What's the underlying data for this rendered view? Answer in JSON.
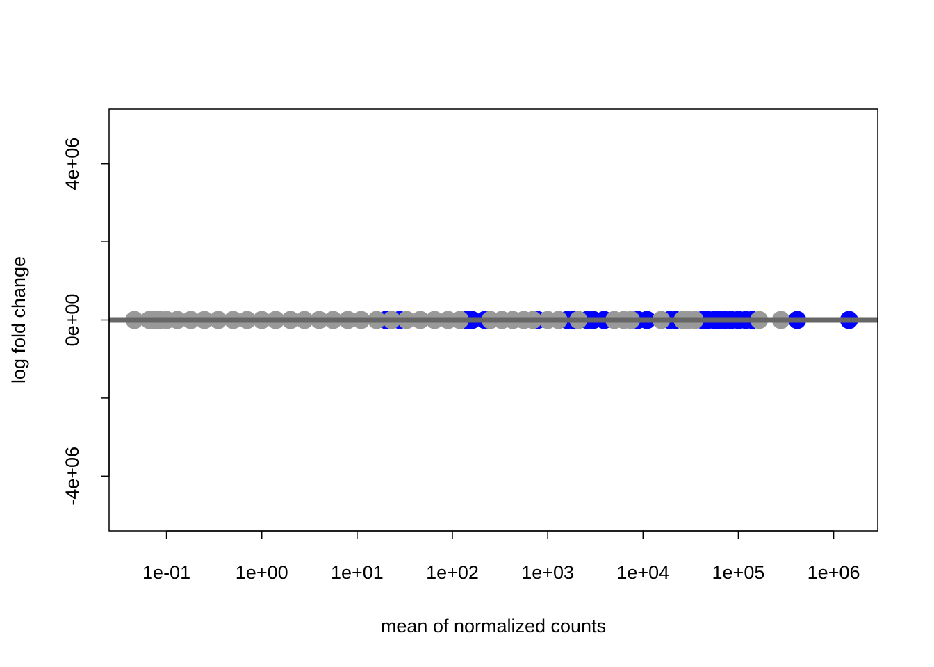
{
  "chart_data": {
    "type": "scatter",
    "title": "",
    "xlabel": "mean of normalized counts",
    "ylabel": "log fold change",
    "x_scale": "log10",
    "xlim": [
      0.025,
      2900000
    ],
    "ylim": [
      -5400000,
      5400000
    ],
    "x_ticks": [
      {
        "value": 0.1,
        "label": "1e-01"
      },
      {
        "value": 1,
        "label": "1e+00"
      },
      {
        "value": 10,
        "label": "1e+01"
      },
      {
        "value": 100,
        "label": "1e+02"
      },
      {
        "value": 1000,
        "label": "1e+03"
      },
      {
        "value": 10000,
        "label": "1e+04"
      },
      {
        "value": 100000,
        "label": "1e+05"
      },
      {
        "value": 1000000,
        "label": "1e+06"
      }
    ],
    "y_ticks": [
      {
        "value": -4000000,
        "label": "-4e+06"
      },
      {
        "value": -2000000,
        "label": ""
      },
      {
        "value": 0,
        "label": "0e+00"
      },
      {
        "value": 2000000,
        "label": ""
      },
      {
        "value": 4000000,
        "label": "4e+06"
      }
    ],
    "reference_line": {
      "y": 0,
      "color": "#666666"
    },
    "grid": false,
    "legend": "none",
    "series": [
      {
        "color": "#0000ff",
        "points": [
          {
            "x": 20,
            "y": 0
          },
          {
            "x": 28,
            "y": 0
          },
          {
            "x": 140,
            "y": 0
          },
          {
            "x": 160,
            "y": 0
          },
          {
            "x": 220,
            "y": 0
          },
          {
            "x": 780,
            "y": 0
          },
          {
            "x": 1600,
            "y": 0
          },
          {
            "x": 1850,
            "y": 0
          },
          {
            "x": 2600,
            "y": 0
          },
          {
            "x": 3000,
            "y": 0
          },
          {
            "x": 3900,
            "y": 0
          },
          {
            "x": 8800,
            "y": 0
          },
          {
            "x": 11000,
            "y": 0
          },
          {
            "x": 19000,
            "y": 0
          },
          {
            "x": 22000,
            "y": 0
          },
          {
            "x": 42000,
            "y": 0
          },
          {
            "x": 48000,
            "y": 0
          },
          {
            "x": 56000,
            "y": 0
          },
          {
            "x": 63000,
            "y": 0
          },
          {
            "x": 72000,
            "y": 0
          },
          {
            "x": 84000,
            "y": 0
          },
          {
            "x": 100000,
            "y": 0
          },
          {
            "x": 120000,
            "y": 0
          },
          {
            "x": 140000,
            "y": 0
          },
          {
            "x": 415000,
            "y": 0
          },
          {
            "x": 1450000,
            "y": 0
          }
        ]
      },
      {
        "color": "#999999",
        "points": [
          {
            "x": 0.046,
            "y": 0
          },
          {
            "x": 0.066,
            "y": 0
          },
          {
            "x": 0.075,
            "y": 0
          },
          {
            "x": 0.085,
            "y": 0
          },
          {
            "x": 0.1,
            "y": 0
          },
          {
            "x": 0.13,
            "y": 0
          },
          {
            "x": 0.18,
            "y": 0
          },
          {
            "x": 0.25,
            "y": 0
          },
          {
            "x": 0.35,
            "y": 0
          },
          {
            "x": 0.5,
            "y": 0
          },
          {
            "x": 0.7,
            "y": 0
          },
          {
            "x": 1,
            "y": 0
          },
          {
            "x": 1.4,
            "y": 0
          },
          {
            "x": 2,
            "y": 0
          },
          {
            "x": 2.8,
            "y": 0
          },
          {
            "x": 4,
            "y": 0
          },
          {
            "x": 5.6,
            "y": 0
          },
          {
            "x": 8,
            "y": 0
          },
          {
            "x": 11,
            "y": 0
          },
          {
            "x": 16,
            "y": 0
          },
          {
            "x": 23,
            "y": 0
          },
          {
            "x": 33,
            "y": 0
          },
          {
            "x": 46,
            "y": 0
          },
          {
            "x": 65,
            "y": 0
          },
          {
            "x": 90,
            "y": 0
          },
          {
            "x": 120,
            "y": 0
          },
          {
            "x": 250,
            "y": 0
          },
          {
            "x": 330,
            "y": 0
          },
          {
            "x": 430,
            "y": 0
          },
          {
            "x": 560,
            "y": 0
          },
          {
            "x": 700,
            "y": 0
          },
          {
            "x": 1000,
            "y": 0
          },
          {
            "x": 1300,
            "y": 0
          },
          {
            "x": 2100,
            "y": 0
          },
          {
            "x": 5000,
            "y": 0
          },
          {
            "x": 6300,
            "y": 0
          },
          {
            "x": 7500,
            "y": 0
          },
          {
            "x": 15500,
            "y": 0
          },
          {
            "x": 26000,
            "y": 0
          },
          {
            "x": 30000,
            "y": 0
          },
          {
            "x": 35000,
            "y": 0
          },
          {
            "x": 165000,
            "y": 0
          },
          {
            "x": 280000,
            "y": 0
          }
        ]
      }
    ]
  }
}
